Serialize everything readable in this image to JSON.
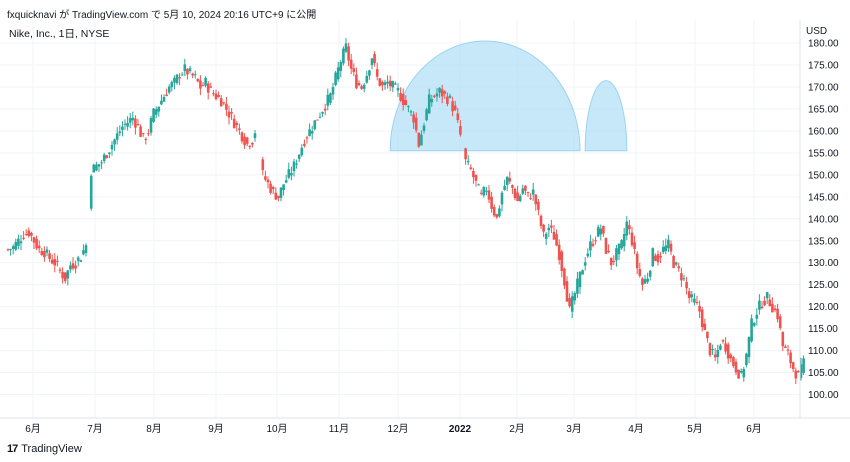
{
  "header": {
    "publish_line": "fxquicknavi が TradingView.com で 5月 10, 2024 20:16 UTC+9 に公開"
  },
  "symbol": {
    "title": "Nike, Inc., 1日, NYSE",
    "currency": "USD"
  },
  "footer": {
    "logo": "17",
    "brand": "TradingView"
  },
  "colors": {
    "up": "#26a69a",
    "down": "#ef5350",
    "pattern_fill": "#b3e0f7",
    "grid": "#f0f3fa"
  },
  "chart_data": {
    "type": "candlestick",
    "title": "Nike, Inc., 1日, NYSE",
    "currency": "USD",
    "y_ticks": [
      "180.00",
      "175.00",
      "170.00",
      "165.00",
      "160.00",
      "155.00",
      "150.00",
      "145.00",
      "140.00",
      "135.00",
      "130.00",
      "125.00",
      "120.00",
      "115.00",
      "110.00",
      "105.00",
      "100.00"
    ],
    "ylim": [
      96,
      183
    ],
    "x_ticks": [
      "6月",
      "7月",
      "8月",
      "9月",
      "10月",
      "11月",
      "12月",
      "2022",
      "2月",
      "3月",
      "4月",
      "5月",
      "6月"
    ],
    "price_path": [
      [
        0,
        133
      ],
      [
        4,
        133.5
      ],
      [
        8,
        135
      ],
      [
        12,
        136.5
      ],
      [
        16,
        137
      ],
      [
        20,
        135
      ],
      [
        24,
        133
      ],
      [
        28,
        132.5
      ],
      [
        32,
        131
      ],
      [
        36,
        130
      ],
      [
        40,
        128
      ],
      [
        44,
        126.5
      ],
      [
        48,
        129.5
      ],
      [
        52,
        130
      ],
      [
        56,
        131.5
      ],
      [
        60,
        134
      ],
      [
        64,
        151
      ],
      [
        68,
        152
      ],
      [
        72,
        153
      ],
      [
        76,
        155
      ],
      [
        80,
        157
      ],
      [
        84,
        159
      ],
      [
        88,
        161
      ],
      [
        92,
        162
      ],
      [
        96,
        163
      ],
      [
        100,
        161
      ],
      [
        104,
        158
      ],
      [
        108,
        160
      ],
      [
        112,
        164
      ],
      [
        116,
        166
      ],
      [
        120,
        168
      ],
      [
        124,
        170
      ],
      [
        128,
        171
      ],
      [
        132,
        173
      ],
      [
        136,
        174
      ],
      [
        140,
        173
      ],
      [
        144,
        172
      ],
      [
        148,
        170
      ],
      [
        152,
        171
      ],
      [
        156,
        169
      ],
      [
        160,
        168
      ],
      [
        164,
        167
      ],
      [
        168,
        165
      ],
      [
        172,
        163
      ],
      [
        176,
        161
      ],
      [
        180,
        159
      ],
      [
        184,
        157
      ],
      [
        188,
        158
      ],
      [
        190,
        160
      ],
      [
        196,
        150
      ],
      [
        200,
        148
      ],
      [
        204,
        146
      ],
      [
        208,
        145
      ],
      [
        212,
        148
      ],
      [
        216,
        150
      ],
      [
        220,
        152
      ],
      [
        224,
        155
      ],
      [
        228,
        158
      ],
      [
        232,
        160
      ],
      [
        236,
        162
      ],
      [
        240,
        164
      ],
      [
        244,
        166
      ],
      [
        248,
        168
      ],
      [
        252,
        172
      ],
      [
        256,
        176
      ],
      [
        260,
        179
      ],
      [
        264,
        174
      ],
      [
        268,
        171
      ],
      [
        272,
        170
      ],
      [
        276,
        173
      ],
      [
        280,
        177
      ],
      [
        284,
        172
      ],
      [
        288,
        170
      ],
      [
        292,
        171
      ],
      [
        296,
        170
      ],
      [
        300,
        169
      ],
      [
        304,
        167
      ],
      [
        308,
        165
      ],
      [
        312,
        163
      ],
      [
        316,
        157
      ],
      [
        320,
        162
      ],
      [
        324,
        167
      ],
      [
        328,
        168
      ],
      [
        332,
        169
      ],
      [
        336,
        168
      ],
      [
        340,
        167
      ],
      [
        344,
        164
      ],
      [
        348,
        159
      ],
      [
        352,
        153
      ],
      [
        356,
        151
      ],
      [
        360,
        148
      ],
      [
        364,
        145
      ],
      [
        368,
        147
      ],
      [
        372,
        143
      ],
      [
        376,
        140
      ],
      [
        380,
        146
      ],
      [
        384,
        149
      ],
      [
        388,
        147
      ],
      [
        392,
        144
      ],
      [
        396,
        147
      ],
      [
        400,
        145
      ],
      [
        404,
        146
      ],
      [
        408,
        141
      ],
      [
        412,
        136
      ],
      [
        416,
        138
      ],
      [
        420,
        136
      ],
      [
        424,
        132
      ],
      [
        428,
        126
      ],
      [
        432,
        119
      ],
      [
        436,
        123
      ],
      [
        440,
        127
      ],
      [
        444,
        131
      ],
      [
        448,
        134
      ],
      [
        452,
        136
      ],
      [
        456,
        138
      ],
      [
        460,
        133
      ],
      [
        464,
        130
      ],
      [
        468,
        132
      ],
      [
        472,
        134
      ],
      [
        476,
        139
      ],
      [
        480,
        135
      ],
      [
        484,
        129
      ],
      [
        488,
        125
      ],
      [
        492,
        127
      ],
      [
        496,
        132
      ],
      [
        500,
        131
      ],
      [
        504,
        133
      ],
      [
        508,
        134
      ],
      [
        512,
        130
      ],
      [
        516,
        128
      ],
      [
        520,
        126
      ],
      [
        524,
        122
      ],
      [
        528,
        121
      ],
      [
        532,
        119
      ],
      [
        536,
        114
      ],
      [
        540,
        110
      ],
      [
        544,
        108
      ],
      [
        548,
        112
      ],
      [
        552,
        111
      ],
      [
        556,
        108
      ],
      [
        560,
        106
      ],
      [
        564,
        104
      ],
      [
        568,
        109
      ],
      [
        572,
        116
      ],
      [
        576,
        119
      ],
      [
        580,
        121
      ],
      [
        584,
        122
      ],
      [
        588,
        120
      ],
      [
        592,
        118
      ],
      [
        596,
        111
      ],
      [
        600,
        109
      ],
      [
        604,
        106
      ],
      [
        608,
        104
      ],
      [
        612,
        107
      ]
    ],
    "patterns": [
      {
        "name": "head",
        "x_range": [
          294,
          440
        ],
        "y_base": 155.5,
        "y_top": 180.5
      },
      {
        "name": "right-shoulder",
        "x_range": [
          444,
          476
        ],
        "y_base": 155.5,
        "y_top": 171.5
      }
    ]
  }
}
